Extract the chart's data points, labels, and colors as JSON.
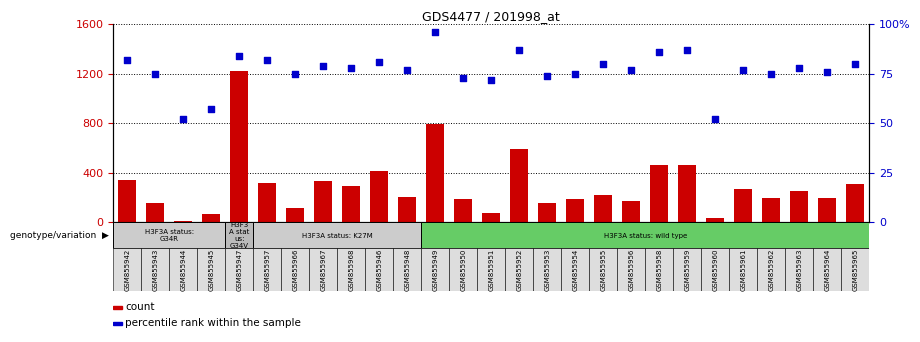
{
  "title": "GDS4477 / 201998_at",
  "samples": [
    "GSM855942",
    "GSM855943",
    "GSM855944",
    "GSM855945",
    "GSM855947",
    "GSM855957",
    "GSM855966",
    "GSM855967",
    "GSM855968",
    "GSM855946",
    "GSM855948",
    "GSM855949",
    "GSM855950",
    "GSM855951",
    "GSM855952",
    "GSM855953",
    "GSM855954",
    "GSM855955",
    "GSM855956",
    "GSM855958",
    "GSM855959",
    "GSM855960",
    "GSM855961",
    "GSM855962",
    "GSM855963",
    "GSM855964",
    "GSM855965"
  ],
  "counts": [
    340,
    155,
    10,
    65,
    1220,
    320,
    115,
    335,
    290,
    415,
    200,
    790,
    185,
    75,
    590,
    155,
    185,
    220,
    175,
    460,
    460,
    35,
    270,
    195,
    255,
    195,
    310
  ],
  "percentiles": [
    82,
    75,
    52,
    57,
    84,
    82,
    75,
    79,
    78,
    81,
    77,
    96,
    73,
    72,
    87,
    74,
    75,
    80,
    77,
    86,
    87,
    52,
    77,
    75,
    78,
    76,
    80
  ],
  "bar_color": "#cc0000",
  "dot_color": "#0000cc",
  "ylim_left": [
    0,
    1600
  ],
  "ylim_right": [
    0,
    100
  ],
  "yticks_left": [
    0,
    400,
    800,
    1200,
    1600
  ],
  "yticks_right": [
    0,
    25,
    50,
    75,
    100
  ],
  "ytick_labels_left": [
    "0",
    "400",
    "800",
    "1200",
    "1600"
  ],
  "ytick_labels_right": [
    "0",
    "25",
    "50",
    "75",
    "100%"
  ],
  "groups": [
    {
      "label": "H3F3A status:\nG34R",
      "start": 0,
      "end": 4,
      "color": "#cccccc"
    },
    {
      "label": "H3F3\nA stat\nus:\nG34V",
      "start": 4,
      "end": 5,
      "color": "#bbbbbb"
    },
    {
      "label": "H3F3A status: K27M",
      "start": 5,
      "end": 11,
      "color": "#cccccc"
    },
    {
      "label": "H3F3A status: wild type",
      "start": 11,
      "end": 27,
      "color": "#66cc66"
    }
  ],
  "legend_count": "count",
  "legend_pct": "percentile rank within the sample",
  "genotype_label": "genotype/variation",
  "background_color": "#ffffff"
}
